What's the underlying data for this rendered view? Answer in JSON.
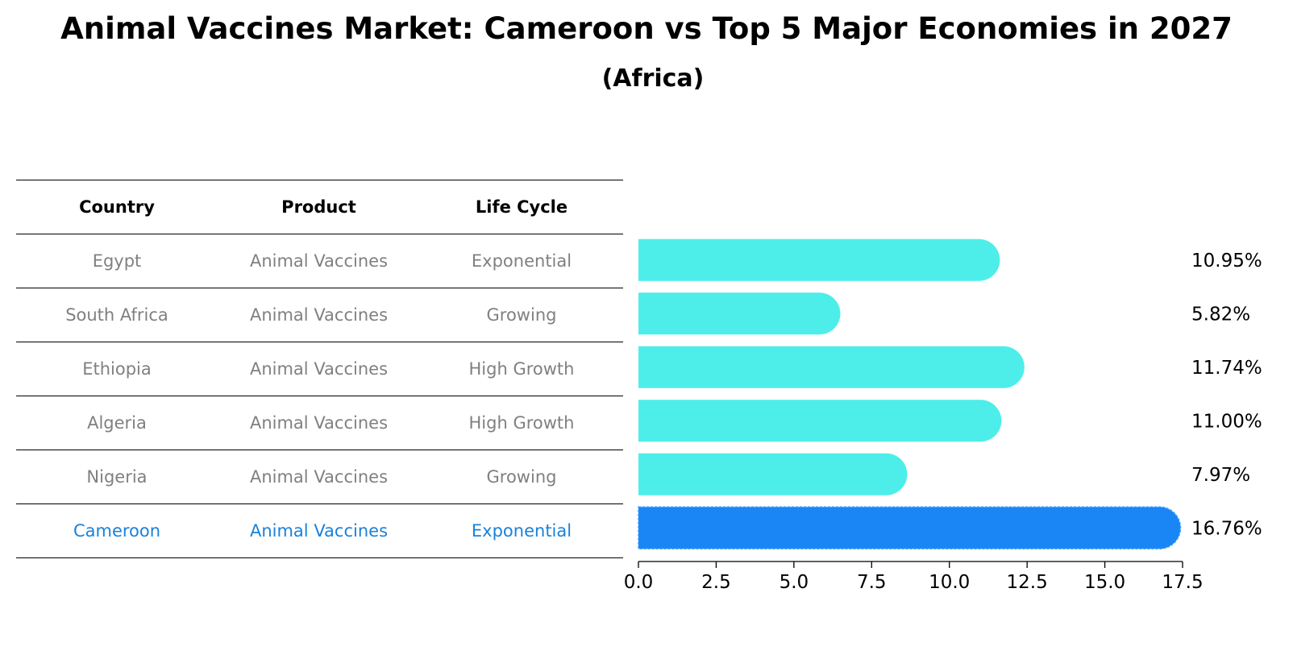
{
  "title": "Animal Vaccines Market: Cameroon vs Top 5 Major Economies in 2027",
  "subtitle": "(Africa)",
  "table": {
    "headers": [
      "Country",
      "Product",
      "Life Cycle"
    ],
    "rows": [
      {
        "country": "Egypt",
        "product": "Animal Vaccines",
        "life_cycle": "Exponential"
      },
      {
        "country": "South Africa",
        "product": "Animal Vaccines",
        "life_cycle": "Growing"
      },
      {
        "country": "Ethiopia",
        "product": "Animal Vaccines",
        "life_cycle": "High Growth"
      },
      {
        "country": "Algeria",
        "product": "Animal Vaccines",
        "life_cycle": "High Growth"
      },
      {
        "country": "Nigeria",
        "product": "Animal Vaccines",
        "life_cycle": "Growing"
      },
      {
        "country": "Cameroon",
        "product": "Animal Vaccines",
        "life_cycle": "Exponential"
      }
    ]
  },
  "chart_data": {
    "type": "bar",
    "orientation": "horizontal",
    "categories": [
      "Egypt",
      "South Africa",
      "Ethiopia",
      "Algeria",
      "Nigeria",
      "Cameroon"
    ],
    "values": [
      10.95,
      5.82,
      11.74,
      11.0,
      7.97,
      16.76
    ],
    "labels": [
      "10.95%",
      "5.82%",
      "11.74%",
      "11.00%",
      "7.97%",
      "16.76%"
    ],
    "highlight": "Cameroon",
    "xlim": [
      0,
      17.5
    ],
    "xticks": [
      "0.0",
      "2.5",
      "5.0",
      "7.5",
      "10.0",
      "12.5",
      "15.0",
      "17.5"
    ],
    "xlabel": "",
    "ylabel": "",
    "colors": {
      "default": "#4deeea",
      "highlight": "#1a85f5"
    }
  }
}
